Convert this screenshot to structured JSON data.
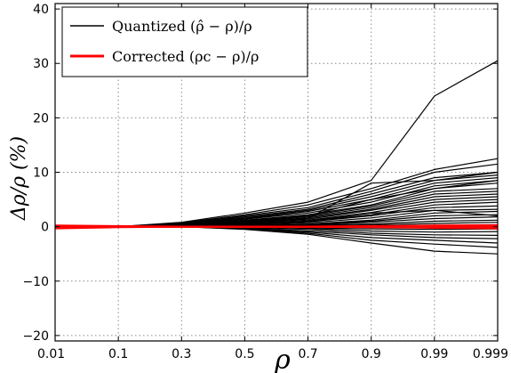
{
  "chart_data": {
    "type": "line",
    "x_tick_labels": [
      "0.01",
      "0.1",
      "0.3",
      "0.5",
      "0.7",
      "0.9",
      "0.99",
      "0.999"
    ],
    "ylim": [
      -21,
      41
    ],
    "y_ticks": [
      -20,
      -10,
      0,
      10,
      20,
      30,
      40
    ],
    "y_tick_labels": [
      "−20",
      "−10",
      "0",
      "10",
      "20",
      "30",
      "40"
    ],
    "xlabel": "ρ",
    "ylabel": "Δρ/ρ (%)",
    "grid": true,
    "legend_position": "top-left",
    "legend": [
      {
        "label": "Quantized (ρ̂ − ρ)/ρ",
        "color": "#000000"
      },
      {
        "label": "Corrected (ρc − ρ)/ρ",
        "color": "#ff0000"
      }
    ],
    "series": [
      {
        "group": "quantized",
        "values": [
          0,
          0,
          0.8,
          2.5,
          4.5,
          8.5,
          24,
          30.5
        ]
      },
      {
        "group": "quantized",
        "values": [
          0,
          0,
          0.7,
          2.2,
          4.0,
          7.0,
          10.5,
          12.5
        ]
      },
      {
        "group": "quantized",
        "values": [
          0,
          0,
          0.6,
          2.0,
          3.5,
          6.5,
          10,
          11.5
        ]
      },
      {
        "group": "quantized",
        "values": [
          0,
          0,
          0.5,
          1.8,
          3.2,
          6.0,
          9,
          10
        ]
      },
      {
        "group": "quantized",
        "values": [
          0,
          0,
          0.5,
          1.6,
          3.0,
          5.5,
          8.5,
          9.5
        ]
      },
      {
        "group": "quantized",
        "values": [
          0,
          0,
          0.4,
          1.5,
          2.8,
          5.0,
          8,
          9
        ]
      },
      {
        "group": "quantized",
        "values": [
          0,
          0,
          0.4,
          1.4,
          2.5,
          4.5,
          7.5,
          8.5
        ]
      },
      {
        "group": "quantized",
        "values": [
          0,
          0,
          0.3,
          1.2,
          2.2,
          4.0,
          7,
          8
        ]
      },
      {
        "group": "quantized",
        "values": [
          0,
          0,
          0.3,
          1.1,
          2.0,
          3.8,
          6.5,
          7
        ]
      },
      {
        "group": "quantized",
        "values": [
          0,
          0,
          0.3,
          1.0,
          1.8,
          3.5,
          6,
          6.5
        ]
      },
      {
        "group": "quantized",
        "values": [
          0,
          0,
          0.2,
          0.9,
          1.6,
          3.2,
          5.5,
          6
        ]
      },
      {
        "group": "quantized",
        "values": [
          0,
          0,
          0.2,
          0.8,
          1.4,
          3.0,
          5,
          5.5
        ]
      },
      {
        "group": "quantized",
        "values": [
          0,
          0,
          0.2,
          0.7,
          1.2,
          2.6,
          4.5,
          5
        ]
      },
      {
        "group": "quantized",
        "values": [
          0,
          0,
          0.1,
          0.6,
          1.0,
          2.2,
          4,
          4.5
        ]
      },
      {
        "group": "quantized",
        "values": [
          0,
          0,
          0.1,
          0.5,
          0.9,
          2.0,
          3.5,
          3.8
        ]
      },
      {
        "group": "quantized",
        "values": [
          0,
          0,
          0.1,
          0.4,
          0.7,
          1.6,
          3,
          3.2
        ]
      },
      {
        "group": "quantized",
        "values": [
          0,
          0,
          0.1,
          0.3,
          0.5,
          1.2,
          2.5,
          2.8
        ]
      },
      {
        "group": "quantized",
        "values": [
          0,
          0,
          0,
          0.2,
          0.4,
          1.0,
          2,
          2.2
        ]
      },
      {
        "group": "quantized",
        "values": [
          0,
          0,
          0,
          0.2,
          0.3,
          0.8,
          1.5,
          1.8
        ]
      },
      {
        "group": "quantized",
        "values": [
          0,
          0,
          0,
          0.1,
          0.2,
          0.5,
          1,
          1.2
        ]
      },
      {
        "group": "quantized",
        "values": [
          0,
          0,
          0,
          0.1,
          0.1,
          0.3,
          0.6,
          0.8
        ]
      },
      {
        "group": "quantized",
        "values": [
          0,
          0,
          0,
          0,
          0,
          0.1,
          0.2,
          0.3
        ]
      },
      {
        "group": "quantized",
        "values": [
          0,
          0,
          0,
          -0.1,
          -0.2,
          -0.4,
          -0.5,
          -0.4
        ]
      },
      {
        "group": "quantized",
        "values": [
          0,
          0,
          0,
          -0.1,
          -0.3,
          -0.8,
          -1,
          -0.9
        ]
      },
      {
        "group": "quantized",
        "values": [
          0,
          0,
          0,
          -0.2,
          -0.5,
          -1.2,
          -1.5,
          -1.6
        ]
      },
      {
        "group": "quantized",
        "values": [
          0,
          0,
          0,
          -0.3,
          -0.8,
          -1.5,
          -2,
          -2.2
        ]
      },
      {
        "group": "quantized",
        "values": [
          0,
          0,
          0,
          -0.3,
          -1.0,
          -2.0,
          -2.5,
          -3
        ]
      },
      {
        "group": "quantized",
        "values": [
          0,
          0,
          0,
          -0.4,
          -1.2,
          -2.5,
          -3.2,
          -3.8
        ]
      },
      {
        "group": "quantized",
        "values": [
          0,
          0,
          0,
          -0.5,
          -1.4,
          -3.0,
          -4.5,
          -5
        ]
      },
      {
        "group": "quantized",
        "values": [
          0,
          0,
          0.2,
          0.8,
          1.5,
          8.0,
          8.5,
          10
        ]
      },
      {
        "group": "quantized",
        "values": [
          0,
          0,
          0.3,
          1.2,
          2.0,
          5.0,
          7,
          8.5
        ]
      },
      {
        "group": "quantized",
        "values": [
          0,
          0,
          0,
          0.5,
          1.0,
          2.5,
          3,
          2
        ]
      },
      {
        "group": "corrected",
        "values": [
          -0.3,
          -0.1,
          0,
          0,
          0,
          0,
          0,
          0
        ]
      },
      {
        "group": "corrected",
        "values": [
          0.2,
          0.1,
          0,
          0,
          0,
          0.1,
          0.1,
          0.1
        ]
      },
      {
        "group": "corrected",
        "values": [
          -0.1,
          0,
          0,
          0,
          0,
          -0.1,
          -0.1,
          -0.1
        ]
      },
      {
        "group": "corrected",
        "values": [
          0.1,
          0,
          0,
          0,
          0,
          0.05,
          0.2,
          0.3
        ]
      },
      {
        "group": "corrected",
        "values": [
          -0.2,
          0,
          0,
          0,
          0,
          -0.05,
          -0.2,
          -0.3
        ]
      }
    ]
  }
}
